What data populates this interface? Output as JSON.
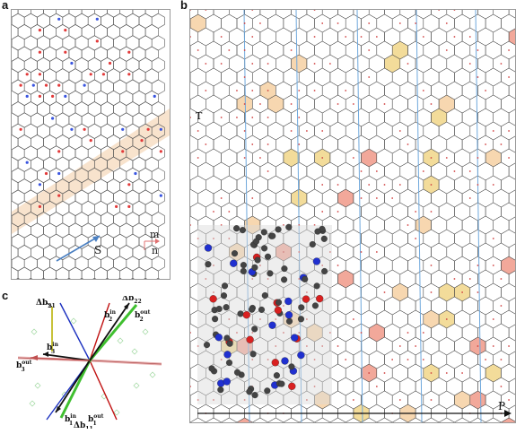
{
  "figure": {
    "panel_labels": {
      "a": "a",
      "b": "b",
      "c": "c"
    }
  },
  "panel_a": {
    "labels": {
      "s": "S",
      "m": "m",
      "n": "n"
    },
    "colors": {
      "lattice": "#555555",
      "highlight": "#f6dcc0",
      "vector": "#4a7fc1",
      "atom_o": "#e23a3a",
      "atom_n": "#3a55e0"
    }
  },
  "panel_b": {
    "labels": {
      "t": "T",
      "p": "P"
    },
    "colors": {
      "lattice": "#444444",
      "line": "#6fa8dc",
      "red_hex": "#f2a89a",
      "orange_hex": "#f7d7b0",
      "yellow_hex": "#f3dc9a",
      "atom_o": "#d92020",
      "atom_n": "#2030d0",
      "atom_c": "#333333"
    }
  },
  "panel_c": {
    "labels": {
      "db21": "Δb",
      "db21_sub": "21",
      "db22": "Δb",
      "db22_sub": "22",
      "b2in": "b",
      "b2in_sub": "2",
      "b2in_sup": "in",
      "b2out": "b",
      "b2out_sub": "2",
      "b2out_sup": "out",
      "b3in": "b",
      "b3in_sub": "3",
      "b3in_sup": "in",
      "b3out": "b",
      "b3out_sub": "3",
      "b3out_sup": "out",
      "b1in": "b",
      "b1in_sub": "1",
      "b1in_sup": "in",
      "b1out": "b",
      "b1out_sub": "1",
      "b1out_sup": "out",
      "db11": "Δb",
      "db11_sub": "11"
    },
    "colors": {
      "black": "#111111",
      "green": "#3fbf2f",
      "yellow": "#c8c23a",
      "red": "#c01010",
      "blue": "#1a2fbf",
      "pink": "#e8b0b0"
    }
  }
}
